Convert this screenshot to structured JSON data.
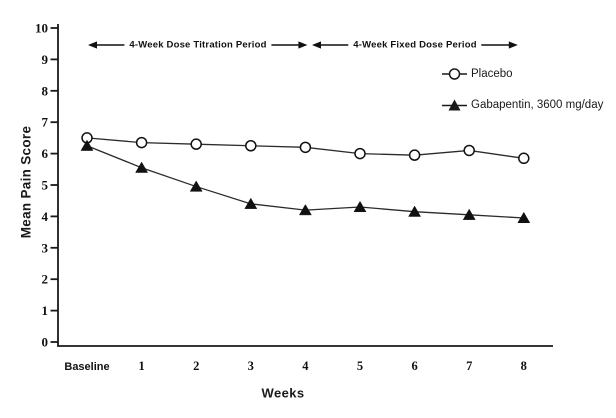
{
  "chart_data": {
    "type": "line",
    "title": "",
    "xlabel": "Weeks",
    "ylabel": "Mean Pain Score",
    "x_categories": [
      "Baseline",
      "1",
      "2",
      "3",
      "4",
      "5",
      "6",
      "7",
      "8"
    ],
    "y_ticks": [
      0,
      1,
      2,
      3,
      4,
      5,
      6,
      7,
      8,
      9,
      10
    ],
    "ylim": [
      0,
      10
    ],
    "grid": false,
    "legend_position": "upper-right",
    "series": [
      {
        "name": "Placebo",
        "marker": "open-circle",
        "color": "#1a1a1a",
        "values": [
          6.5,
          6.35,
          6.3,
          6.25,
          6.2,
          6.0,
          5.95,
          6.1,
          5.85
        ]
      },
      {
        "name": "Gabapentin, 3600 mg/day",
        "marker": "filled-triangle",
        "color": "#1a1a1a",
        "values": [
          6.25,
          5.55,
          4.95,
          4.4,
          4.2,
          4.3,
          4.15,
          4.05,
          3.95
        ]
      }
    ],
    "annotations": [
      {
        "label": "4-Week Dose Titration Period",
        "from_category": "Baseline",
        "to_category": "4",
        "style": "double-arrow"
      },
      {
        "label": "4-Week Fixed Dose Period",
        "from_category": "4",
        "to_category": "8",
        "style": "double-arrow"
      }
    ],
    "colors": {
      "foreground": "#1a1a1a",
      "background": "#ffffff"
    }
  }
}
